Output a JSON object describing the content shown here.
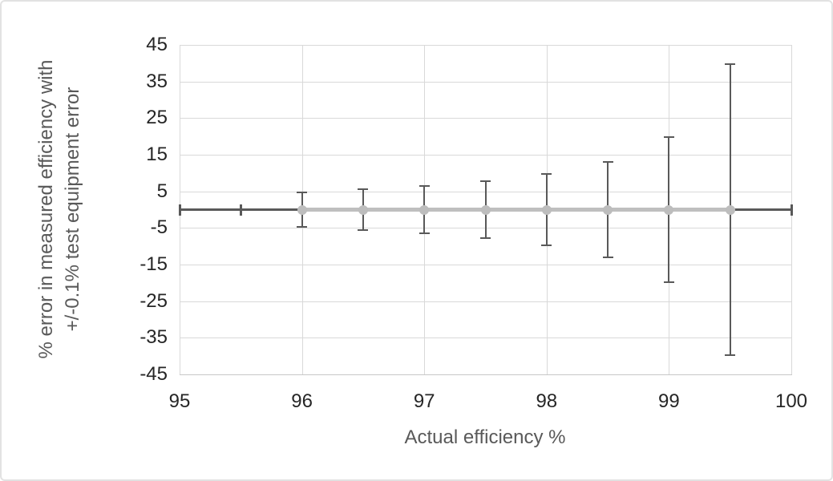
{
  "chart": {
    "background": "#ffffff",
    "border_color": "#e2e2e2"
  },
  "chart_data": {
    "type": "line",
    "title": "",
    "xlabel": "Actual efficiency %",
    "ylabel": "% error in measured efficiency with +/-0.1% test equipment error",
    "ylabel_lines": [
      "% error in measured efficiency with",
      "+/-0.1% test equipment error"
    ],
    "x": [
      96,
      96.5,
      97,
      97.5,
      98,
      98.5,
      99,
      99.5
    ],
    "y": [
      0,
      0,
      0,
      0,
      0,
      0,
      0,
      0
    ],
    "y_error": [
      4.8,
      5.5,
      6.5,
      7.8,
      9.8,
      13.1,
      19.8,
      39.8
    ],
    "x_error_segments": [
      {
        "x1": 95,
        "x2": 96,
        "y": 0,
        "caps": [
          95,
          95.5
        ]
      },
      {
        "x1": 99.5,
        "x2": 100,
        "y": 0,
        "caps": [
          100
        ]
      }
    ],
    "x_ticks": [
      "95",
      "96",
      "97",
      "98",
      "99",
      "100"
    ],
    "x_tick_values": [
      95,
      96,
      97,
      98,
      99,
      100
    ],
    "y_ticks": [
      "45",
      "35",
      "25",
      "15",
      "5",
      "-5",
      "-15",
      "-25",
      "-35",
      "-45"
    ],
    "y_tick_values": [
      45,
      35,
      25,
      15,
      5,
      -5,
      -15,
      -25,
      -35,
      -45
    ],
    "xlim": [
      95,
      100
    ],
    "ylim": [
      -45,
      45
    ],
    "grid": true,
    "legend": "none",
    "marker": "circle",
    "colors": {
      "series": "#bfbfbf",
      "marker": "#bdbdbd",
      "error_bar": "#595959",
      "gridline": "#d9d9d9",
      "axis_line": "#c8c8c8",
      "tick_label": "#262626",
      "axis_title": "#595959",
      "background": "#ffffff"
    }
  }
}
